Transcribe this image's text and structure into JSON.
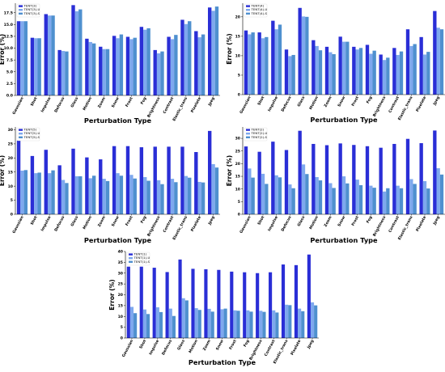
{
  "colors": [
    "#2a2ed6",
    "#7ea8ee",
    "#4f90cf"
  ],
  "chart_data": [
    {
      "type": "bar",
      "categories": [
        "Gaussian",
        "Shot",
        "Impulse",
        "Defocus",
        "Glass",
        "Motion",
        "Zoom",
        "Snow",
        "Frost",
        "Fog",
        "Brightness",
        "Contrast",
        "Elastic_trans",
        "Pixelate",
        "Jpeg"
      ],
      "series": [
        {
          "name": "TENT(3)",
          "values": [
            15.7,
            12.2,
            17.2,
            9.6,
            19.1,
            12.0,
            10.3,
            12.6,
            12.4,
            14.5,
            9.6,
            12.4,
            16.0,
            13.6,
            18.6
          ]
        },
        {
          "name": "TENT(3)-U",
          "values": [
            15.7,
            12.1,
            16.9,
            9.4,
            17.8,
            11.3,
            9.8,
            12.1,
            11.9,
            13.9,
            8.9,
            11.9,
            15.1,
            12.3,
            17.9
          ]
        },
        {
          "name": "TENT(3)-S",
          "values": [
            15.7,
            12.1,
            16.9,
            9.3,
            18.2,
            11.0,
            9.8,
            12.9,
            12.2,
            14.2,
            9.3,
            12.8,
            15.7,
            12.9,
            18.8
          ]
        }
      ],
      "title": "",
      "xlabel": "Perturbation Type",
      "ylabel": "Error (%)",
      "ylim": [
        0,
        19.5
      ],
      "yticks": [
        "0.0",
        "2.5",
        "5.0",
        "7.5",
        "10.0",
        "12.5",
        "15.0",
        "17.5"
      ],
      "ytick_values": [
        0,
        2.5,
        5,
        7.5,
        10,
        12.5,
        15,
        17.5
      ],
      "legend": "top-left",
      "grid": false
    },
    {
      "type": "bar",
      "categories": [
        "Gaussian",
        "Shot",
        "Impulse",
        "Defocus",
        "Glass",
        "Motion",
        "Zoom",
        "Snow",
        "Frost",
        "Fog",
        "Brightness",
        "Contrast",
        "Elastic_trans",
        "Pixelate",
        "Jpeg"
      ],
      "series": [
        {
          "name": "TENT(4)",
          "values": [
            16.5,
            16.0,
            19.0,
            11.6,
            22.3,
            14.0,
            12.3,
            14.9,
            12.3,
            12.8,
            10.3,
            12.0,
            16.8,
            14.8,
            21.5
          ]
        },
        {
          "name": "TENT(4)-U",
          "values": [
            15.5,
            14.5,
            16.8,
            9.9,
            20.1,
            12.5,
            10.9,
            13.6,
            11.6,
            10.5,
            8.9,
            10.2,
            12.5,
            10.3,
            17.2
          ]
        },
        {
          "name": "TENT(4)-S",
          "values": [
            16.0,
            14.8,
            18.0,
            10.2,
            20.0,
            11.4,
            10.4,
            13.6,
            12.0,
            11.3,
            9.5,
            11.1,
            13.0,
            11.0,
            16.8
          ]
        }
      ],
      "title": "",
      "xlabel": "Perturbation Type",
      "ylabel": "Error (%)",
      "ylim": [
        0,
        23.5
      ],
      "yticks": [
        "0",
        "5",
        "10",
        "15",
        "20"
      ],
      "ytick_values": [
        0,
        5,
        10,
        15,
        20
      ],
      "legend": "top-left",
      "grid": false
    },
    {
      "type": "bar",
      "categories": [
        "Gaussian",
        "Shot",
        "Impulse",
        "Defocus",
        "Glass",
        "Motion",
        "Zoom",
        "Snow",
        "Frost",
        "Fog",
        "Brightness",
        "Contrast",
        "Elastic_trans",
        "Pixelate",
        "Jpeg"
      ],
      "series": [
        {
          "name": "TENT(5)",
          "values": [
            26.2,
            20.7,
            22.9,
            17.4,
            23.3,
            20.2,
            19.5,
            24.2,
            24.2,
            23.8,
            24.0,
            24.0,
            24.0,
            22.1,
            29.6
          ]
        },
        {
          "name": "TENT(5)-U",
          "values": [
            15.5,
            14.6,
            14.6,
            12.2,
            13.5,
            12.8,
            12.6,
            14.6,
            14.0,
            13.2,
            12.1,
            12.6,
            13.6,
            11.5,
            17.8
          ]
        },
        {
          "name": "TENT(5)-S",
          "values": [
            15.7,
            14.8,
            15.6,
            11.1,
            13.5,
            13.7,
            11.8,
            13.7,
            12.7,
            11.9,
            10.7,
            11.4,
            13.0,
            11.3,
            16.6
          ]
        }
      ],
      "title": "",
      "xlabel": "Perturbation Type",
      "ylabel": "Error (%)",
      "ylim": [
        0,
        31
      ],
      "yticks": [
        "0",
        "5",
        "10",
        "15",
        "20",
        "25",
        "30"
      ],
      "ytick_values": [
        0,
        5,
        10,
        15,
        20,
        25,
        30
      ],
      "legend": "top-left",
      "grid": false
    },
    {
      "type": "bar",
      "categories": [
        "Gaussian",
        "Shot",
        "Impulse",
        "Defocus",
        "Glass",
        "Motion",
        "Zoom",
        "Snow",
        "Frost",
        "Fog",
        "Brightness",
        "Contrast",
        "Elastic_trans",
        "Pixelate",
        "Jpeg"
      ],
      "series": [
        {
          "name": "TENT(2)",
          "values": [
            26.8,
            24.7,
            28.7,
            25.4,
            33.0,
            27.8,
            27.3,
            28.0,
            27.4,
            26.9,
            26.3,
            27.8,
            29.8,
            28.1,
            33.1
          ]
        },
        {
          "name": "TENT(2)-U",
          "values": [
            18.1,
            16.0,
            15.4,
            11.8,
            19.7,
            14.7,
            12.3,
            15.0,
            13.7,
            11.3,
            9.0,
            11.3,
            13.9,
            13.1,
            18.2
          ]
        },
        {
          "name": "TENT(2)-S",
          "values": [
            14.5,
            12.0,
            14.6,
            10.3,
            15.9,
            13.4,
            10.4,
            12.2,
            11.5,
            10.5,
            10.3,
            10.3,
            12.0,
            10.2,
            15.7
          ]
        }
      ],
      "title": "",
      "xlabel": "Perturbation Type",
      "ylabel": "Error (%)",
      "ylim": [
        0,
        34.5
      ],
      "yticks": [
        "0",
        "5",
        "10",
        "15",
        "20",
        "25",
        "30"
      ],
      "ytick_values": [
        0,
        5,
        10,
        15,
        20,
        25,
        30
      ],
      "legend": "top-left",
      "grid": false
    },
    {
      "type": "bar",
      "categories": [
        "Gaussian",
        "Shot",
        "Impulse",
        "Defocus",
        "Glass",
        "Motion",
        "Zoom",
        "Snow",
        "Frost",
        "Fog",
        "Brightness",
        "Contrast",
        "Elastic_trans",
        "Pixelate",
        "Jpeg"
      ],
      "series": [
        {
          "name": "TENT(1)",
          "values": [
            33.0,
            33.0,
            32.5,
            30.5,
            36.3,
            32.0,
            31.8,
            31.5,
            30.7,
            30.4,
            30.0,
            30.4,
            34.0,
            33.7,
            38.6
          ]
        },
        {
          "name": "TENT(1)-U",
          "values": [
            14.4,
            13.2,
            14.2,
            13.6,
            18.4,
            13.8,
            13.5,
            13.3,
            12.8,
            12.8,
            12.6,
            12.8,
            15.4,
            13.6,
            16.5
          ]
        },
        {
          "name": "TENT(1)-S",
          "values": [
            11.5,
            11.1,
            12.0,
            10.2,
            17.4,
            13.0,
            12.2,
            13.6,
            12.6,
            12.2,
            12.1,
            11.8,
            15.2,
            12.4,
            15.1
          ]
        }
      ],
      "title": "",
      "xlabel": "Perturbation Type",
      "ylabel": "Error (%)",
      "ylim": [
        0,
        40
      ],
      "yticks": [
        "0",
        "5",
        "10",
        "15",
        "20",
        "25",
        "30",
        "35",
        "40"
      ],
      "ytick_values": [
        0,
        5,
        10,
        15,
        20,
        25,
        30,
        35,
        40
      ],
      "legend": "top-left",
      "grid": false
    }
  ]
}
